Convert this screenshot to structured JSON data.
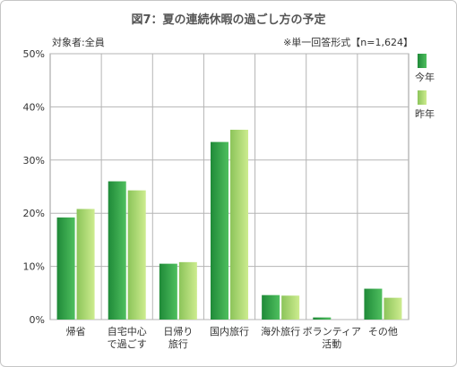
{
  "header": {
    "title": "図7：夏の連続休暇の過ごし方の予定",
    "subject": "対象者:全員",
    "note": "※単一回答形式【n=1,624】"
  },
  "legend": [
    {
      "name": "今年",
      "color": "#2a9140"
    },
    {
      "name": "昨年",
      "color": "#9ed461"
    }
  ],
  "chart_data": {
    "type": "bar",
    "title": "図7：夏の連続休暇の過ごし方の予定",
    "categories": [
      [
        "帰省"
      ],
      [
        "自宅中心",
        "で過ごす"
      ],
      [
        "日帰り",
        "旅行"
      ],
      [
        "国内旅行"
      ],
      [
        "海外旅行"
      ],
      [
        "ボランティア",
        "活動"
      ],
      [
        "その他"
      ]
    ],
    "series": [
      {
        "name": "今年",
        "color": "#2a9140",
        "values": [
          19.2,
          26.0,
          10.5,
          33.4,
          4.6,
          0.4,
          5.8
        ]
      },
      {
        "name": "昨年",
        "color": "#9ed461",
        "values": [
          20.8,
          24.3,
          10.8,
          35.7,
          4.5,
          0.0,
          4.1
        ]
      }
    ],
    "ylim": [
      0,
      50
    ],
    "yticks": [
      "0%",
      "10%",
      "20%",
      "30%",
      "40%",
      "50%"
    ],
    "grid": true,
    "legend_position": "right"
  }
}
